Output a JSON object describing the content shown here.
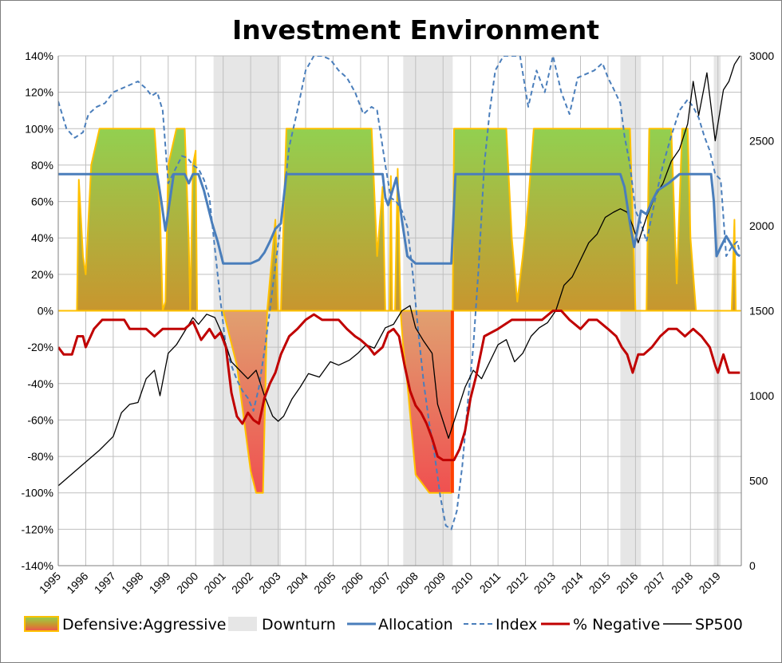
{
  "chart_data": {
    "type": "line",
    "title": "Investment Environment",
    "xlabel": "",
    "ylabel": "",
    "x_categories": [
      "1995",
      "1996",
      "1997",
      "1998",
      "1999",
      "2000",
      "2001",
      "2002",
      "2003",
      "2004",
      "2005",
      "2006",
      "2007",
      "2008",
      "2009",
      "2010",
      "2011",
      "2012",
      "2013",
      "2014",
      "2015",
      "2016",
      "2017",
      "2018",
      "2019"
    ],
    "y_left": {
      "min": -140,
      "max": 140,
      "step": 20,
      "tick_labels": [
        "140%",
        "120%",
        "100%",
        "80%",
        "60%",
        "40%",
        "20%",
        "0%",
        "-20%",
        "-40%",
        "-60%",
        "-80%",
        "-100%",
        "-120%",
        "-140%"
      ]
    },
    "y_right": {
      "min": 0,
      "max": 3000,
      "step": 500,
      "tick_labels": [
        "3000",
        "2500",
        "2000",
        "1500",
        "1000",
        "500",
        "0"
      ]
    },
    "grid": true,
    "legend_position": "bottom",
    "colors": {
      "allocation": "#4a7ebb",
      "index": "#4a7ebb",
      "negative": "#c00000",
      "sp500": "#000000",
      "downturn": "#e6e6e6",
      "aggressive_top": "#92d050",
      "aggressive_bottom": "#c8962e",
      "defensive_top": "#e0a070",
      "defensive_bottom": "#f05050",
      "fill_border": "#ffc000"
    },
    "legend": [
      {
        "key": "defensive_aggressive",
        "label": "Defensive:Aggressive"
      },
      {
        "key": "downturn",
        "label": "Downturn"
      },
      {
        "key": "allocation",
        "label": "Allocation"
      },
      {
        "key": "index",
        "label": "Index"
      },
      {
        "key": "negative",
        "label": "% Negative"
      },
      {
        "key": "sp500",
        "label": "SP500"
      }
    ],
    "downturns": [
      [
        2000.65,
        2003.1
      ],
      [
        2007.55,
        2009.35
      ],
      [
        2015.45,
        2016.2
      ],
      [
        2018.85,
        2019.1
      ]
    ],
    "series": [
      {
        "name": "Allocation",
        "axis": "left",
        "style": "solid",
        "x": [
          1995.0,
          1996.0,
          1997.0,
          1998.0,
          1998.6,
          1998.75,
          1998.9,
          1999.2,
          1999.6,
          1999.75,
          1999.9,
          2000.1,
          2000.3,
          2000.6,
          2000.8,
          2001.0,
          2001.5,
          2002.0,
          2002.3,
          2002.5,
          2002.7,
          2002.9,
          2003.1,
          2003.3,
          2004.0,
          2005.0,
          2006.0,
          2006.8,
          2006.9,
          2007.0,
          2007.2,
          2007.3,
          2007.5,
          2007.7,
          2008.0,
          2008.5,
          2009.0,
          2009.3,
          2009.45,
          2010.0,
          2011.0,
          2012.0,
          2013.0,
          2014.0,
          2015.0,
          2015.45,
          2015.6,
          2015.8,
          2015.95,
          2016.2,
          2016.4,
          2016.6,
          2016.8,
          2017.2,
          2017.6,
          2018.0,
          2018.4,
          2018.75,
          2018.85,
          2018.95,
          2019.1,
          2019.3,
          2019.5,
          2019.7,
          2019.8
        ],
        "y": [
          75,
          75,
          75,
          75,
          75,
          60,
          44,
          75,
          75,
          70,
          75,
          75,
          66,
          48,
          38,
          26,
          26,
          26,
          28,
          32,
          38,
          45,
          48,
          75,
          75,
          75,
          75,
          75,
          62,
          58,
          68,
          73,
          50,
          30,
          26,
          26,
          26,
          26,
          75,
          75,
          75,
          75,
          75,
          75,
          75,
          75,
          68,
          48,
          35,
          55,
          53,
          60,
          66,
          70,
          75,
          75,
          75,
          75,
          60,
          30,
          35,
          41,
          36,
          31,
          30
        ]
      },
      {
        "name": "Index",
        "axis": "left",
        "style": "dashed",
        "x": [
          1995.0,
          1995.3,
          1995.6,
          1995.9,
          1996.1,
          1996.4,
          1996.7,
          1997.0,
          1997.3,
          1997.6,
          1997.9,
          1998.2,
          1998.4,
          1998.6,
          1998.8,
          1999.0,
          1999.2,
          1999.5,
          1999.7,
          1999.9,
          2000.1,
          2000.3,
          2000.5,
          2000.7,
          2000.9,
          2001.1,
          2001.3,
          2001.5,
          2001.7,
          2001.9,
          2002.1,
          2002.3,
          2002.5,
          2002.7,
          2002.9,
          2003.1,
          2003.4,
          2003.7,
          2004.0,
          2004.3,
          2004.6,
          2004.9,
          2005.2,
          2005.5,
          2005.8,
          2006.1,
          2006.4,
          2006.6,
          2006.9,
          2007.1,
          2007.3,
          2007.5,
          2007.7,
          2007.9,
          2008.1,
          2008.3,
          2008.5,
          2008.7,
          2008.9,
          2009.1,
          2009.3,
          2009.5,
          2009.7,
          2009.9,
          2010.1,
          2010.3,
          2010.5,
          2010.7,
          2010.9,
          2011.2,
          2011.5,
          2011.8,
          2012.1,
          2012.4,
          2012.7,
          2013.0,
          2013.3,
          2013.6,
          2013.9,
          2014.2,
          2014.5,
          2014.8,
          2015.0,
          2015.2,
          2015.45,
          2015.6,
          2015.8,
          2016.0,
          2016.2,
          2016.4,
          2016.7,
          2017.0,
          2017.3,
          2017.6,
          2017.9,
          2018.1,
          2018.3,
          2018.5,
          2018.7,
          2018.9,
          2019.1,
          2019.3,
          2019.5,
          2019.7,
          2019.8
        ],
        "y": [
          115,
          100,
          95,
          98,
          108,
          112,
          114,
          120,
          122,
          124,
          126,
          122,
          118,
          120,
          110,
          70,
          76,
          85,
          84,
          80,
          78,
          72,
          62,
          34,
          6,
          -20,
          -30,
          -38,
          -44,
          -48,
          -55,
          -42,
          -22,
          0,
          25,
          48,
          90,
          110,
          132,
          140,
          140,
          138,
          132,
          128,
          120,
          108,
          112,
          110,
          80,
          62,
          60,
          55,
          46,
          20,
          -12,
          -40,
          -62,
          -80,
          -102,
          -118,
          -120,
          -110,
          -85,
          -50,
          -20,
          25,
          80,
          110,
          132,
          140,
          140,
          140,
          112,
          132,
          120,
          140,
          120,
          108,
          128,
          130,
          132,
          136,
          128,
          122,
          114,
          96,
          80,
          55,
          48,
          38,
          60,
          80,
          96,
          110,
          116,
          112,
          106,
          96,
          88,
          75,
          72,
          30,
          35,
          38,
          32
        ]
      },
      {
        "name": "% Negative",
        "axis": "left",
        "style": "solid",
        "x": [
          1995.0,
          1995.2,
          1995.5,
          1995.7,
          1995.9,
          1996.0,
          1996.3,
          1996.6,
          1997.0,
          1997.4,
          1997.6,
          1997.9,
          1998.2,
          1998.5,
          1998.8,
          1999.0,
          1999.3,
          1999.6,
          1999.9,
          2000.2,
          2000.5,
          2000.7,
          2000.9,
          2001.1,
          2001.3,
          2001.5,
          2001.7,
          2001.9,
          2002.1,
          2002.3,
          2002.5,
          2002.7,
          2002.9,
          2003.1,
          2003.4,
          2003.7,
          2004.0,
          2004.3,
          2004.6,
          2004.9,
          2005.2,
          2005.5,
          2005.8,
          2006.0,
          2006.3,
          2006.5,
          2006.8,
          2007.0,
          2007.2,
          2007.4,
          2007.6,
          2007.8,
          2008.0,
          2008.2,
          2008.4,
          2008.6,
          2008.8,
          2009.0,
          2009.2,
          2009.4,
          2009.6,
          2009.8,
          2010.0,
          2010.2,
          2010.5,
          2011.0,
          2011.5,
          2012.0,
          2012.3,
          2012.6,
          2013.0,
          2013.3,
          2013.6,
          2014.0,
          2014.3,
          2014.6,
          2015.0,
          2015.3,
          2015.5,
          2015.7,
          2015.9,
          2016.1,
          2016.3,
          2016.6,
          2016.9,
          2017.2,
          2017.5,
          2017.8,
          2018.1,
          2018.4,
          2018.7,
          2018.9,
          2019.0,
          2019.2,
          2019.4,
          2019.6,
          2019.8
        ],
        "y": [
          -20,
          -24,
          -24,
          -14,
          -14,
          -20,
          -10,
          -5,
          -5,
          -5,
          -10,
          -10,
          -10,
          -14,
          -10,
          -10,
          -10,
          -10,
          -6,
          -16,
          -10,
          -15,
          -12,
          -20,
          -45,
          -58,
          -62,
          -56,
          -60,
          -62,
          -48,
          -40,
          -34,
          -24,
          -14,
          -10,
          -5,
          -2,
          -5,
          -5,
          -5,
          -10,
          -14,
          -16,
          -20,
          -24,
          -20,
          -12,
          -10,
          -14,
          -30,
          -44,
          -52,
          -56,
          -62,
          -70,
          -80,
          -82,
          -82,
          -82,
          -76,
          -66,
          -48,
          -36,
          -14,
          -10,
          -5,
          -5,
          -5,
          -5,
          0,
          0,
          -5,
          -10,
          -5,
          -5,
          -10,
          -14,
          -20,
          -24,
          -34,
          -24,
          -24,
          -20,
          -14,
          -10,
          -10,
          -14,
          -10,
          -14,
          -20,
          -30,
          -34,
          -24,
          -34,
          -34,
          -34
        ]
      },
      {
        "name": "SP500",
        "axis": "right",
        "x": [
          1995.0,
          1995.5,
          1996.0,
          1996.5,
          1997.0,
          1997.3,
          1997.6,
          1997.9,
          1998.2,
          1998.5,
          1998.7,
          1999.0,
          1999.3,
          1999.6,
          1999.9,
          2000.1,
          2000.4,
          2000.7,
          2001.0,
          2001.3,
          2001.6,
          2001.9,
          2002.2,
          2002.5,
          2002.8,
          2003.0,
          2003.2,
          2003.5,
          2003.8,
          2004.1,
          2004.5,
          2004.9,
          2005.2,
          2005.6,
          2005.9,
          2006.2,
          2006.5,
          2006.9,
          2007.2,
          2007.5,
          2007.8,
          2008.0,
          2008.3,
          2008.6,
          2008.8,
          2009.0,
          2009.2,
          2009.5,
          2009.8,
          2010.1,
          2010.4,
          2010.7,
          2011.0,
          2011.3,
          2011.6,
          2011.9,
          2012.2,
          2012.5,
          2012.8,
          2013.1,
          2013.4,
          2013.7,
          2014.0,
          2014.3,
          2014.6,
          2014.9,
          2015.2,
          2015.45,
          2015.7,
          2015.9,
          2016.1,
          2016.4,
          2016.7,
          2017.0,
          2017.3,
          2017.6,
          2017.9,
          2018.1,
          2018.3,
          2018.6,
          2018.9,
          2019.0,
          2019.2,
          2019.4,
          2019.6,
          2019.8
        ],
        "y": [
          470,
          540,
          610,
          680,
          760,
          900,
          950,
          960,
          1100,
          1150,
          1000,
          1250,
          1300,
          1380,
          1460,
          1420,
          1480,
          1460,
          1350,
          1200,
          1150,
          1100,
          1150,
          1000,
          880,
          850,
          880,
          980,
          1050,
          1130,
          1110,
          1200,
          1180,
          1210,
          1250,
          1300,
          1280,
          1400,
          1420,
          1500,
          1530,
          1400,
          1320,
          1250,
          950,
          850,
          750,
          900,
          1050,
          1150,
          1100,
          1200,
          1300,
          1330,
          1200,
          1250,
          1350,
          1400,
          1430,
          1500,
          1650,
          1700,
          1800,
          1900,
          1950,
          2050,
          2080,
          2100,
          2080,
          2000,
          1900,
          2050,
          2170,
          2250,
          2380,
          2450,
          2600,
          2850,
          2650,
          2900,
          2500,
          2600,
          2800,
          2850,
          2950,
          3000
        ]
      }
    ],
    "regime_fill": {
      "axis": "left",
      "x": [
        1995.0,
        1995.68,
        1995.75,
        1995.9,
        1996.0,
        1996.2,
        1996.5,
        1997.0,
        1998.0,
        1998.5,
        1998.7,
        1998.8,
        1998.9,
        1999.0,
        1999.3,
        1999.5,
        1999.6,
        1999.75,
        1999.8,
        1999.9,
        2000.0,
        2000.05,
        2000.15,
        2000.3,
        2000.5,
        2000.8,
        2001.0,
        2001.5,
        2002.0,
        2002.2,
        2002.3,
        2002.45,
        2002.6,
        2002.9,
        2003.0,
        2003.1,
        2003.3,
        2004.0,
        2005.0,
        2006.0,
        2006.4,
        2006.6,
        2006.8,
        2006.9,
        2007.05,
        2007.1,
        2007.15,
        2007.25,
        2007.35,
        2007.45,
        2007.55,
        2007.7,
        2008.0,
        2008.5,
        2009.0,
        2009.3,
        2009.35,
        2009.4,
        2009.5,
        2009.7,
        2010.0,
        2010.5,
        2011.0,
        2011.3,
        2011.5,
        2011.7,
        2011.9,
        2012.1,
        2012.3,
        2013.0,
        2014.0,
        2015.0,
        2015.4,
        2015.5,
        2015.8,
        2016.0,
        2016.1,
        2016.2,
        2016.4,
        2016.5,
        2017.0,
        2017.3,
        2017.5,
        2017.7,
        2017.9,
        2018.0,
        2018.2,
        2018.8,
        2019.0,
        2019.1,
        2019.3,
        2019.5,
        2019.6,
        2019.65,
        2019.8
      ],
      "y": [
        0,
        0,
        72,
        30,
        20,
        80,
        100,
        100,
        100,
        100,
        55,
        0,
        5,
        80,
        100,
        100,
        100,
        38,
        0,
        80,
        88,
        0,
        0,
        0,
        0,
        0,
        0,
        -30,
        -88,
        -100,
        -100,
        -100,
        0,
        50,
        0,
        0,
        100,
        100,
        100,
        100,
        100,
        30,
        68,
        0,
        0,
        74,
        0,
        0,
        78,
        0,
        -20,
        -40,
        -90,
        -100,
        -100,
        -100,
        0,
        100,
        100,
        100,
        100,
        100,
        100,
        100,
        40,
        5,
        30,
        60,
        100,
        100,
        100,
        100,
        100,
        100,
        100,
        0,
        0,
        0,
        0,
        100,
        100,
        100,
        15,
        100,
        100,
        40,
        0,
        0,
        0,
        0,
        0,
        0,
        50,
        0,
        0
      ]
    }
  }
}
